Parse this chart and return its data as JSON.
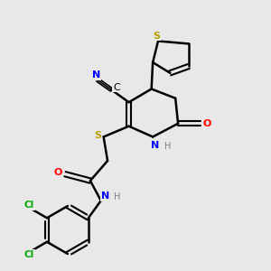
{
  "bg_color": "#e8e8e8",
  "bond_color": "#000000",
  "bond_width": 1.8,
  "colors": {
    "S": "#b8a000",
    "N": "#0000ff",
    "O": "#ff0000",
    "C": "#000000",
    "Cl": "#00aa00",
    "H": "#808080"
  },
  "figsize": [
    3.0,
    3.0
  ],
  "dpi": 100
}
